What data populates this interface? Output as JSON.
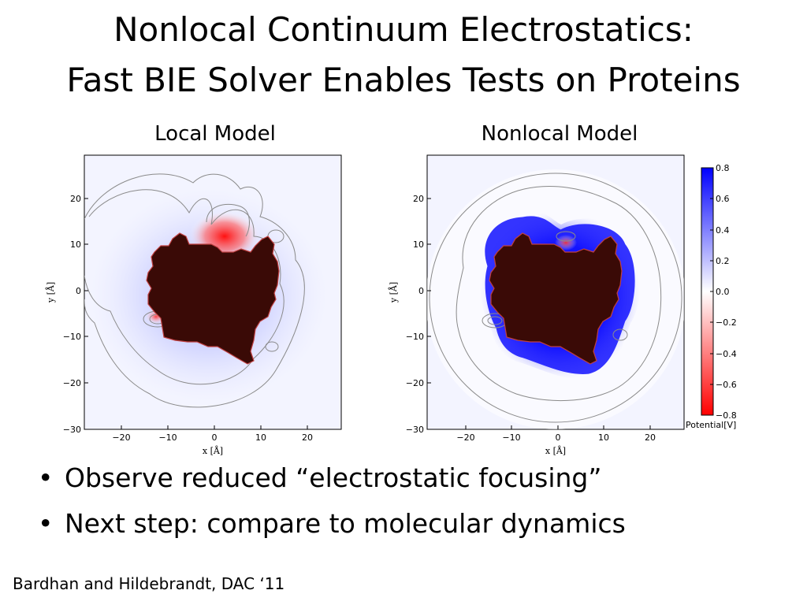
{
  "slide": {
    "title_line1": "Nonlocal Continuum Electrostatics:",
    "title_line2": "Fast BIE Solver Enables Tests on Proteins",
    "bullets": [
      "Observe reduced “electrostatic focusing”",
      "Next step: compare to molecular dynamics"
    ],
    "citation": "Bardhan and Hildebrandt, DAC ‘11"
  },
  "chart_data": [
    {
      "type": "heatmap",
      "title": "Local Model",
      "xlabel": "x [Å]",
      "ylabel": "y [Å]",
      "xlim": [
        -28,
        28
      ],
      "ylim": [
        -30,
        28
      ],
      "xticks": [
        "−20",
        "−10",
        "0",
        "10",
        "20"
      ],
      "yticks": [
        "20",
        "10",
        "0",
        "−10",
        "−20",
        "−30"
      ],
      "colors": {
        "positive": "#0000ff",
        "negative": "#ff0000",
        "protein": "#3a0a06"
      }
    },
    {
      "type": "heatmap",
      "title": "Nonlocal Model",
      "xlabel": "x [Å]",
      "ylabel": "y [Å]",
      "xlim": [
        -28,
        28
      ],
      "ylim": [
        -30,
        28
      ],
      "xticks": [
        "−20",
        "−10",
        "0",
        "10",
        "20"
      ],
      "yticks": [
        "20",
        "10",
        "0",
        "−10",
        "−20",
        "−30"
      ],
      "colorbar": {
        "label": "Potential[V]",
        "ticks": [
          "0.8",
          "0.6",
          "0.4",
          "0.2",
          "0.0",
          "−0.2",
          "−0.4",
          "−0.6",
          "−0.8"
        ],
        "range": [
          -0.8,
          0.8
        ]
      },
      "colors": {
        "positive": "#0000ff",
        "negative": "#ff0000",
        "protein": "#3a0a06"
      }
    }
  ]
}
